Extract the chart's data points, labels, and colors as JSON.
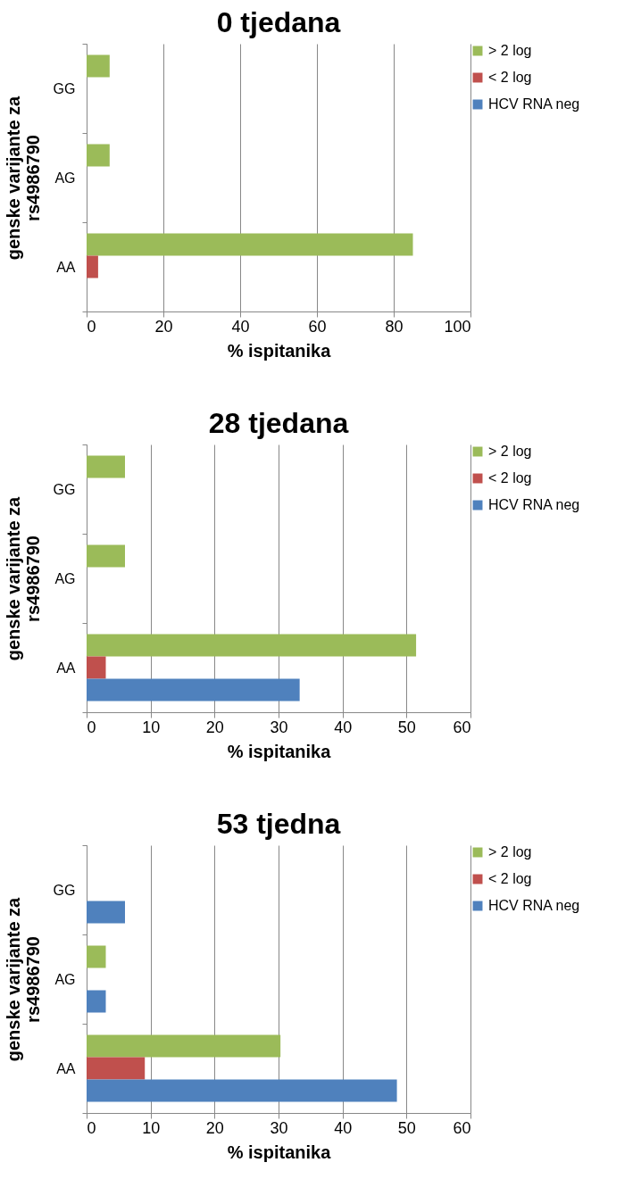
{
  "chart_data": [
    {
      "type": "bar",
      "orientation": "horizontal",
      "title": "0 tjedana",
      "xlabel": "% ispitanika",
      "ylabel": "genske varijante za\nrs4986790",
      "categories": [
        "GG",
        "AG",
        "AA"
      ],
      "series": [
        {
          "name": "> 2 log",
          "color": "#9bbb59",
          "values": [
            6,
            6,
            85
          ]
        },
        {
          "name": "< 2 log",
          "color": "#c0504d",
          "values": [
            null,
            null,
            3
          ]
        },
        {
          "name": "HCV RNA  neg",
          "color": "#4f81bd",
          "values": [
            null,
            null,
            null
          ]
        }
      ],
      "xlim": [
        0,
        100
      ],
      "xticks": [
        0,
        20,
        40,
        60,
        80,
        100
      ],
      "grid": "x",
      "legend": "right"
    },
    {
      "type": "bar",
      "orientation": "horizontal",
      "title": "28 tjedana",
      "xlabel": "% ispitanika",
      "ylabel": "genske varijante za\nrs4986790",
      "categories": [
        "GG",
        "AG",
        "AA"
      ],
      "series": [
        {
          "name": "> 2 log",
          "color": "#9bbb59",
          "values": [
            6,
            6,
            51.5
          ]
        },
        {
          "name": "< 2 log",
          "color": "#c0504d",
          "values": [
            null,
            null,
            3
          ]
        },
        {
          "name": "HCV RNA  neg",
          "color": "#4f81bd",
          "values": [
            null,
            null,
            33.3
          ]
        }
      ],
      "xlim": [
        0,
        60
      ],
      "xticks": [
        0,
        10,
        20,
        30,
        40,
        50,
        60
      ],
      "grid": "x",
      "legend": "right"
    },
    {
      "type": "bar",
      "orientation": "horizontal",
      "title": "53 tjedna",
      "xlabel": "% ispitanika",
      "ylabel": "genske varijante za\nrs4986790",
      "categories": [
        "GG",
        "AG",
        "AA"
      ],
      "series": [
        {
          "name": "> 2 log",
          "color": "#9bbb59",
          "values": [
            null,
            3,
            30.3
          ]
        },
        {
          "name": "< 2 log",
          "color": "#c0504d",
          "values": [
            null,
            null,
            9.1
          ]
        },
        {
          "name": "HCV RNA  neg",
          "color": "#4f81bd",
          "values": [
            6,
            3,
            48.5
          ]
        }
      ],
      "xlim": [
        0,
        60
      ],
      "xticks": [
        0,
        10,
        20,
        30,
        40,
        50,
        60
      ],
      "grid": "x",
      "legend": "right"
    }
  ]
}
